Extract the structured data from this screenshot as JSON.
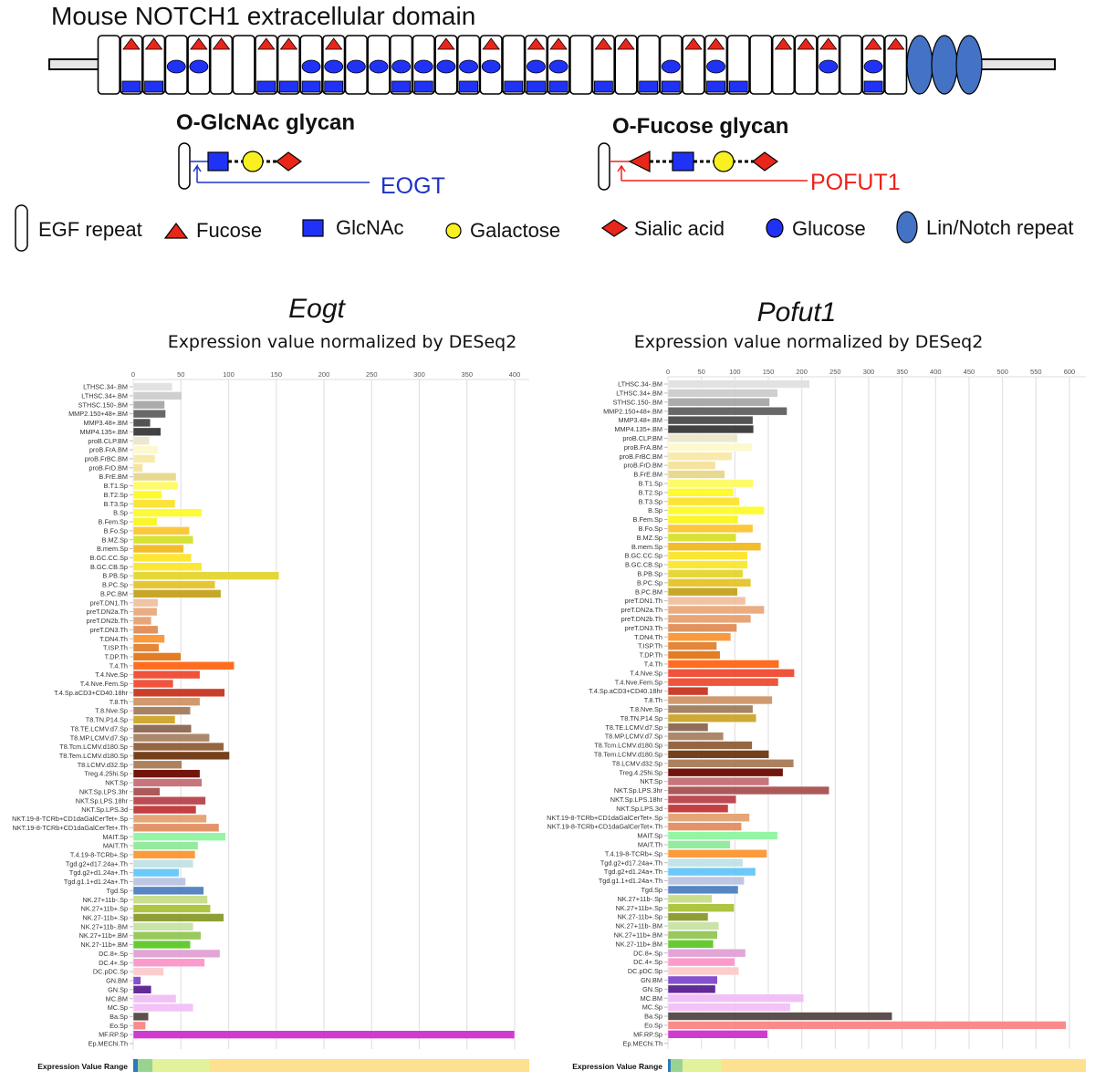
{
  "figure": {
    "title": "Mouse NOTCH1 extracellular domain",
    "egf_repeat_count": 36,
    "lin_notch_repeat_count": 3,
    "fucose_repeats": [
      1,
      2,
      4,
      5,
      7,
      8,
      10,
      15,
      17,
      19,
      20,
      22,
      23,
      26,
      27,
      30,
      31,
      32,
      34,
      35
    ],
    "glucose_repeats": [
      3,
      4,
      9,
      10,
      11,
      12,
      13,
      14,
      15,
      16,
      17,
      19,
      20,
      25,
      27,
      32,
      34
    ],
    "glcnac_repeats": [
      1,
      2,
      7,
      8,
      9,
      10,
      13,
      14,
      16,
      18,
      19,
      20,
      22,
      24,
      25,
      27,
      28,
      34
    ],
    "colors": {
      "fucose": "#e8261a",
      "glcnac": "#1f32f5",
      "galactose": "#f8f020",
      "sialic": "#e8261a",
      "glucose": "#1f32f5",
      "lin_notch": "#4472c4",
      "eogt": "#1f32c8",
      "pofut1": "#f02018"
    }
  },
  "glycans": {
    "oglcnac_title": "O-GlcNAc glycan",
    "oglcnac_enzyme": "EOGT",
    "ofucose_title": "O-Fucose glycan",
    "ofucose_enzyme": "POFUT1"
  },
  "legend": {
    "egf": "EGF repeat",
    "fucose": "Fucose",
    "glcnac": "GlcNAc",
    "galactose": "Galactose",
    "sialic": "Sialic acid",
    "glucose": "Glucose",
    "lin_notch": "Lin/Notch repeat"
  },
  "range_label": "Expression Value Range",
  "range_colors": [
    "#2b7bba",
    "#98d490",
    "#e2f29a",
    "#fde090"
  ],
  "categories": [
    "LTHSC.34-.BM",
    "LTHSC.34+.BM",
    "STHSC.150-.BM",
    "MMP2.150+48+.BM",
    "MMP3.48+.BM",
    "MMP4.135+.BM",
    "proB.CLP.BM",
    "proB.FrA.BM",
    "proB.FrBC.BM",
    "proB.FrD.BM",
    "B.FrE.BM",
    "B.T1.Sp",
    "B.T2.Sp",
    "B.T3.Sp",
    "B.Sp",
    "B.Fem.Sp",
    "B.Fo.Sp",
    "B.MZ.Sp",
    "B.mem.Sp",
    "B.GC.CC.Sp",
    "B.GC.CB.Sp",
    "B.PB.Sp",
    "B.PC.Sp",
    "B.PC.BM",
    "preT.DN1.Th",
    "preT.DN2a.Th",
    "preT.DN2b.Th",
    "preT.DN3.Th",
    "T.DN4.Th",
    "T.ISP.Th",
    "T.DP.Th",
    "T.4.Th",
    "T.4.Nve.Sp",
    "T.4.Nve.Fem.Sp",
    "T.4.Sp.aCD3+CD40.18hr",
    "T.8.Th",
    "T.8.Nve.Sp",
    "T8.TN.P14.Sp",
    "T8.TE.LCMV.d7.Sp",
    "T8.MP.LCMV.d7.Sp",
    "T8.Tcm.LCMV.d180.Sp",
    "T8.Tem.LCMV.d180.Sp",
    "T8.LCMV.d32.Sp",
    "Treg.4.25hi.Sp",
    "NKT.Sp",
    "NKT.Sp.LPS.3hr",
    "NKT.Sp.LPS.18hr",
    "NKT.Sp.LPS.3d",
    "NKT.19-8-TCRb+CD1daGalCerTet+.Sp",
    "NKT.19-8-TCRb+CD1daGalCerTet+.Th",
    "MAIT.Sp",
    "MAIT.Th",
    "T.4.19-8-TCRb+.Sp",
    "Tgd.g2+d17.24a+.Th",
    "Tgd.g2+d1.24a+.Th",
    "Tgd.g1.1+d1.24a+.Th",
    "Tgd.Sp",
    "NK.27+11b-.Sp",
    "NK.27+11b+.Sp",
    "NK.27-11b+.Sp",
    "NK.27+11b-.BM",
    "NK.27+11b+.BM",
    "NK.27-11b+.BM",
    "DC.8+.Sp",
    "DC.4+.Sp",
    "DC.pDC.Sp",
    "GN.BM",
    "GN.Sp",
    "MC.BM",
    "MC.Sp",
    "Ba.Sp",
    "Eo.Sp",
    "MF.RP.Sp",
    "Ep.MEChi.Th"
  ],
  "bar_colors": [
    "#e0e0e0",
    "#cccccc",
    "#a6a6a6",
    "#606060",
    "#4a4a4a",
    "#383838",
    "#ece6cc",
    "#fdf9cc",
    "#f9e9a8",
    "#f5e29a",
    "#e6d88a",
    "#fdfb63",
    "#fdfb20",
    "#fbe12e",
    "#fdfb2c",
    "#f9f520",
    "#fbc531",
    "#d5e02a",
    "#f2b81f",
    "#fbe52a",
    "#fbe62c",
    "#e4d52f",
    "#e6c329",
    "#c4a21e",
    "#efc0a0",
    "#eaa87a",
    "#e8a070",
    "#e28c55",
    "#fb9532",
    "#e28130",
    "#e07618",
    "#fe6514",
    "#ee4a30",
    "#ee4b32",
    "#c73520",
    "#cd9466",
    "#a27c5e",
    "#cda42a",
    "#8b6650",
    "#a88262",
    "#8f5e38",
    "#6e3610",
    "#a87a55",
    "#6a0a00",
    "#c46d74",
    "#a85050",
    "#b8424a",
    "#c03638",
    "#e4a070",
    "#e08e60",
    "#8ef5a0",
    "#8eea98",
    "#fb9632",
    "#c0e2e6",
    "#62c6f8",
    "#b8c4e0",
    "#4e80c0",
    "#c6dd88",
    "#aac238",
    "#8a9a2a",
    "#c6e2a4",
    "#94c554",
    "#5ec828",
    "#e0a0d4",
    "#fb96c8",
    "#fccaca",
    "#7e48cc",
    "#5a2090",
    "#f0bef6",
    "#f2c0f4",
    "#544644",
    "#fb8484",
    "#cc30cc",
    "#cccccc"
  ],
  "chart_data": [
    {
      "type": "bar",
      "orientation": "horizontal",
      "title": "Eogt",
      "subtitle": "Expression value normalized by DESeq2",
      "xlim": [
        0,
        415
      ],
      "xticks": [
        0,
        50,
        100,
        150,
        200,
        250,
        300,
        350,
        400
      ],
      "grid": true,
      "values": [
        41,
        51,
        33,
        34,
        18,
        29,
        17,
        26,
        23,
        10,
        45,
        47,
        30,
        44,
        72,
        25,
        59,
        63,
        53,
        61,
        72,
        153,
        86,
        92,
        26,
        25,
        19,
        26,
        33,
        27,
        50,
        106,
        70,
        42,
        96,
        70,
        60,
        44,
        61,
        80,
        95,
        101,
        51,
        70,
        72,
        28,
        76,
        66,
        77,
        90,
        97,
        68,
        65,
        63,
        48,
        55,
        74,
        78,
        81,
        95,
        63,
        71,
        60,
        91,
        75,
        32,
        8,
        19,
        45,
        63,
        16,
        13,
        400,
        0
      ]
    },
    {
      "type": "bar",
      "orientation": "horizontal",
      "title": "Pofut1",
      "subtitle": "Expression value normalized by DESeq2",
      "xlim": [
        0,
        625
      ],
      "xticks": [
        0,
        50,
        100,
        150,
        200,
        250,
        300,
        350,
        400,
        450,
        500,
        550,
        600
      ],
      "grid": true,
      "values": [
        212,
        164,
        152,
        178,
        127,
        128,
        104,
        126,
        96,
        71,
        85,
        128,
        98,
        107,
        144,
        105,
        127,
        102,
        139,
        119,
        119,
        112,
        124,
        104,
        116,
        144,
        124,
        103,
        94,
        73,
        78,
        166,
        189,
        165,
        60,
        156,
        127,
        132,
        60,
        83,
        126,
        151,
        188,
        172,
        151,
        241,
        102,
        90,
        122,
        110,
        164,
        93,
        148,
        112,
        131,
        114,
        105,
        66,
        99,
        60,
        76,
        74,
        68,
        116,
        100,
        106,
        74,
        71,
        203,
        183,
        335,
        595,
        149,
        0
      ]
    }
  ]
}
